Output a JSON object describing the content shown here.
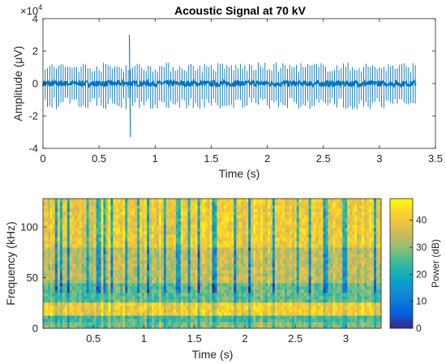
{
  "chart_data": [
    {
      "type": "line",
      "title": "Acoustic Signal  at 70 kV",
      "xlabel": "Time (s)",
      "ylabel": "Amplitude (μV)",
      "y_exponent_label": "×10",
      "y_exponent": "4",
      "xlim": [
        0,
        3.5
      ],
      "ylim": [
        -4,
        4
      ],
      "xticks": [
        "0",
        "0.5",
        "1",
        "1.5",
        "2",
        "2.5",
        "3",
        "3.5"
      ],
      "yticks": [
        "-4",
        "-2",
        "0",
        "2",
        "4"
      ],
      "series": [
        {
          "color": "#0072BD",
          "duration": 3.33,
          "spike_interval": 0.02,
          "typical_peak": [
            1.3,
            -1.6
          ],
          "x": [
            0.77,
            0.78
          ],
          "y": [
            3.0,
            -3.3
          ]
        }
      ],
      "grid": false
    },
    {
      "type": "heatmap",
      "xlabel": "Time (s)",
      "ylabel": "Frequency (kHz)",
      "colorbar_label": "Power (dB)",
      "xlim": [
        0,
        3.35
      ],
      "ylim": [
        0,
        128
      ],
      "xticks": [
        "0.5",
        "1",
        "1.5",
        "2",
        "2.5",
        "3"
      ],
      "yticks": [
        "0",
        "50",
        "100"
      ],
      "colorbar_ticks": [
        "0",
        "10",
        "20",
        "30",
        "40"
      ],
      "clim": [
        0,
        48
      ],
      "colormap": "parula",
      "bands": [
        {
          "freq": [
            0,
            6
          ],
          "power": 28
        },
        {
          "freq": [
            6,
            12
          ],
          "power": 24
        },
        {
          "freq": [
            12,
            25
          ],
          "power": 40
        },
        {
          "freq": [
            25,
            45
          ],
          "power": 26
        },
        {
          "freq": [
            45,
            80
          ],
          "power": 33
        },
        {
          "freq": [
            80,
            128
          ],
          "power": 39
        }
      ],
      "dark_columns_t": [
        0.13,
        0.18,
        0.26,
        0.44,
        0.55,
        0.62,
        0.69,
        0.82,
        0.95,
        1.05,
        1.2,
        1.34,
        1.45,
        1.55,
        1.7,
        1.9,
        2.05,
        2.28,
        2.52,
        2.65,
        2.8,
        2.99,
        3.28
      ]
    }
  ]
}
